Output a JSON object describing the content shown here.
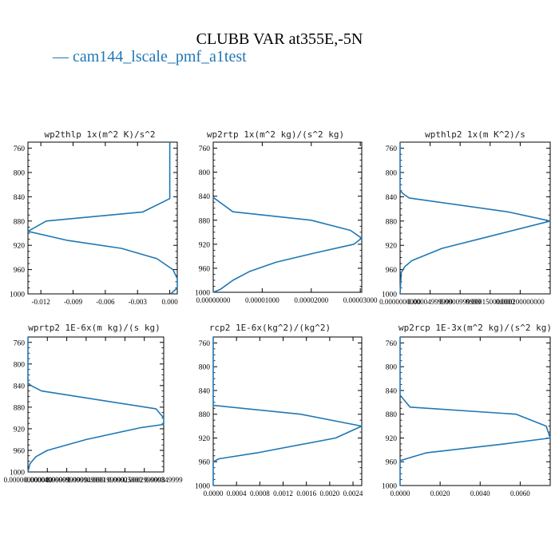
{
  "figure": {
    "title": "CLUBB VAR at355E,-5N",
    "legend": {
      "label": "— cam144_lscale_pmf_a1test",
      "color": "#1f77b4"
    }
  },
  "chart_data": [
    {
      "type": "line",
      "title": "wp2thlp  1x(m^2 K)/s^2",
      "xlim": [
        -0.0132,
        0.0007
      ],
      "ylim": [
        1000,
        750
      ],
      "yticks": [
        "760",
        "800",
        "840",
        "880",
        "920",
        "960",
        "1000"
      ],
      "xticks": [
        {
          "v": -0.012,
          "label": "-0.012"
        },
        {
          "v": -0.009,
          "label": "-0.009"
        },
        {
          "v": -0.006,
          "label": "-0.006"
        },
        {
          "v": -0.003,
          "label": "-0.003"
        },
        {
          "v": 0.0,
          "label": "0.000"
        }
      ],
      "series": [
        {
          "points": [
            [
              0.0,
              750
            ],
            [
              0.0,
              843
            ],
            [
              -0.0025,
              865
            ],
            [
              -0.0115,
              880
            ],
            [
              -0.0132,
              897
            ],
            [
              -0.0095,
              912
            ],
            [
              -0.0045,
              925
            ],
            [
              -0.0012,
              942
            ],
            [
              0.0003,
              960
            ],
            [
              0.0007,
              975
            ],
            [
              0.0007,
              990
            ],
            [
              0.0001,
              1000
            ]
          ]
        }
      ]
    },
    {
      "type": "line",
      "title": "wp2rtp  1x(m^2 kg)/(s^2 kg)",
      "xlim": [
        0.0,
        3.03e-05
      ],
      "ylim": [
        1000,
        750
      ],
      "yticks": [
        "760",
        "800",
        "840",
        "880",
        "920",
        "960",
        "1000"
      ],
      "xticks": [
        {
          "v": 0.0,
          "label": "0.00000000"
        },
        {
          "v": 1e-05,
          "label": "0.00001000"
        },
        {
          "v": 2e-05,
          "label": "0.00002000"
        },
        {
          "v": 3e-05,
          "label": "0.00003000"
        }
      ],
      "series": [
        {
          "points": [
            [
              0.0,
              842
            ],
            [
              4e-06,
              866
            ],
            [
              2e-05,
              880
            ],
            [
              2.8e-05,
              897
            ],
            [
              3.03e-05,
              910
            ],
            [
              2.87e-05,
              920
            ],
            [
              2.05e-05,
              935
            ],
            [
              1.28e-05,
              950
            ],
            [
              7.5e-06,
              965
            ],
            [
              4e-06,
              980
            ],
            [
              1.5e-06,
              995
            ],
            [
              0.0,
              1000
            ]
          ]
        }
      ]
    },
    {
      "type": "line",
      "title": "wpthlp2  1x(m K^2)/s",
      "xlim": [
        0.0,
        0.00025
      ],
      "ylim": [
        1000,
        750
      ],
      "yticks": [
        "760",
        "800",
        "840",
        "880",
        "920",
        "960",
        "1000"
      ],
      "xticks": [
        {
          "v": 0.0,
          "label": "0.0000000000"
        },
        {
          "v": 5e-05,
          "label": "0.00004999999"
        },
        {
          "v": 0.0001,
          "label": "0.0000999999"
        },
        {
          "v": 0.00015,
          "label": "0.000150000000"
        },
        {
          "v": 0.0002,
          "label": "0.000200000000"
        }
      ],
      "series": [
        {
          "points": [
            [
              0.0,
              750
            ],
            [
              0.0,
              830
            ],
            [
              5e-06,
              835
            ],
            [
              1.5e-05,
              842
            ],
            [
              0.00018,
              865
            ],
            [
              0.00025,
              880
            ],
            [
              0.00015,
              905
            ],
            [
              7e-05,
              925
            ],
            [
              2e-05,
              945
            ],
            [
              8e-06,
              955
            ],
            [
              2e-06,
              965
            ],
            [
              0.0,
              1000
            ]
          ]
        }
      ]
    },
    {
      "type": "line",
      "title": "wprtp2  1E-6x(m kg)/(s kg)",
      "xlim": [
        0.0,
        0.00035
      ],
      "ylim": [
        1000,
        750
      ],
      "yticks": [
        "760",
        "800",
        "840",
        "880",
        "920",
        "960",
        "1000"
      ],
      "xticks": [
        {
          "v": 0.0,
          "label": "0.000000000000"
        },
        {
          "v": 5e-05,
          "label": "0.00004999999"
        },
        {
          "v": 0.0001,
          "label": "0.0000999999"
        },
        {
          "v": 0.00015,
          "label": "0.000149999"
        },
        {
          "v": 0.0002,
          "label": "0.000199999"
        },
        {
          "v": 0.00025,
          "label": "0.00025000"
        },
        {
          "v": 0.0003,
          "label": "0.0002999998"
        },
        {
          "v": 0.00035,
          "label": "0.000349999"
        }
      ],
      "series": [
        {
          "points": [
            [
              0.0,
              750
            ],
            [
              0.0,
              835
            ],
            [
              8e-06,
              840
            ],
            [
              3.5e-05,
              850
            ],
            [
              0.00033,
              883
            ],
            [
              0.00035,
              900
            ],
            [
              0.00035,
              912
            ],
            [
              0.00029,
              918
            ],
            [
              0.00015,
              940
            ],
            [
              5e-05,
              960
            ],
            [
              2e-05,
              972
            ],
            [
              5e-06,
              985
            ],
            [
              0.0,
              1000
            ]
          ]
        }
      ]
    },
    {
      "type": "line",
      "title": "rcp2  1E-6x(kg^2)/(kg^2)",
      "xlim": [
        0.0,
        0.00255
      ],
      "ylim": [
        1000,
        750
      ],
      "yticks": [
        "760",
        "800",
        "840",
        "880",
        "920",
        "960",
        "1000"
      ],
      "xticks": [
        {
          "v": 0.0,
          "label": "0.0000"
        },
        {
          "v": 0.0004,
          "label": "0.0004"
        },
        {
          "v": 0.0008,
          "label": "0.0008"
        },
        {
          "v": 0.0012,
          "label": "0.0012"
        },
        {
          "v": 0.0016,
          "label": "0.0016"
        },
        {
          "v": 0.002,
          "label": "0.0020"
        },
        {
          "v": 0.0024,
          "label": "0.0024"
        }
      ],
      "series": [
        {
          "points": [
            [
              0.0,
              750
            ],
            [
              0.0,
              865
            ],
            [
              0.0015,
              880
            ],
            [
              0.00255,
              900
            ],
            [
              0.0021,
              920
            ],
            [
              0.00075,
              945
            ],
            [
              0.0001,
              955
            ],
            [
              0.0,
              960
            ],
            [
              0.0,
              1000
            ]
          ]
        }
      ]
    },
    {
      "type": "line",
      "title": "wp2rcp  1E-3x(m^2 kg)/(s^2 kg)",
      "xlim": [
        0.0,
        0.0075
      ],
      "ylim": [
        1000,
        750
      ],
      "yticks": [
        "760",
        "800",
        "840",
        "880",
        "920",
        "960",
        "1000"
      ],
      "xticks": [
        {
          "v": 0.0,
          "label": "0.0000"
        },
        {
          "v": 0.002,
          "label": "0.0020"
        },
        {
          "v": 0.004,
          "label": "0.0040"
        },
        {
          "v": 0.006,
          "label": "0.0060"
        }
      ],
      "series": [
        {
          "points": [
            [
              0.0,
              750
            ],
            [
              0.0,
              848
            ],
            [
              0.0005,
              868
            ],
            [
              0.0058,
              880
            ],
            [
              0.0073,
              900
            ],
            [
              0.0075,
              920
            ],
            [
              0.0052,
              930
            ],
            [
              0.0013,
              945
            ],
            [
              0.0,
              958
            ],
            [
              0.0,
              1000
            ]
          ]
        }
      ]
    }
  ]
}
